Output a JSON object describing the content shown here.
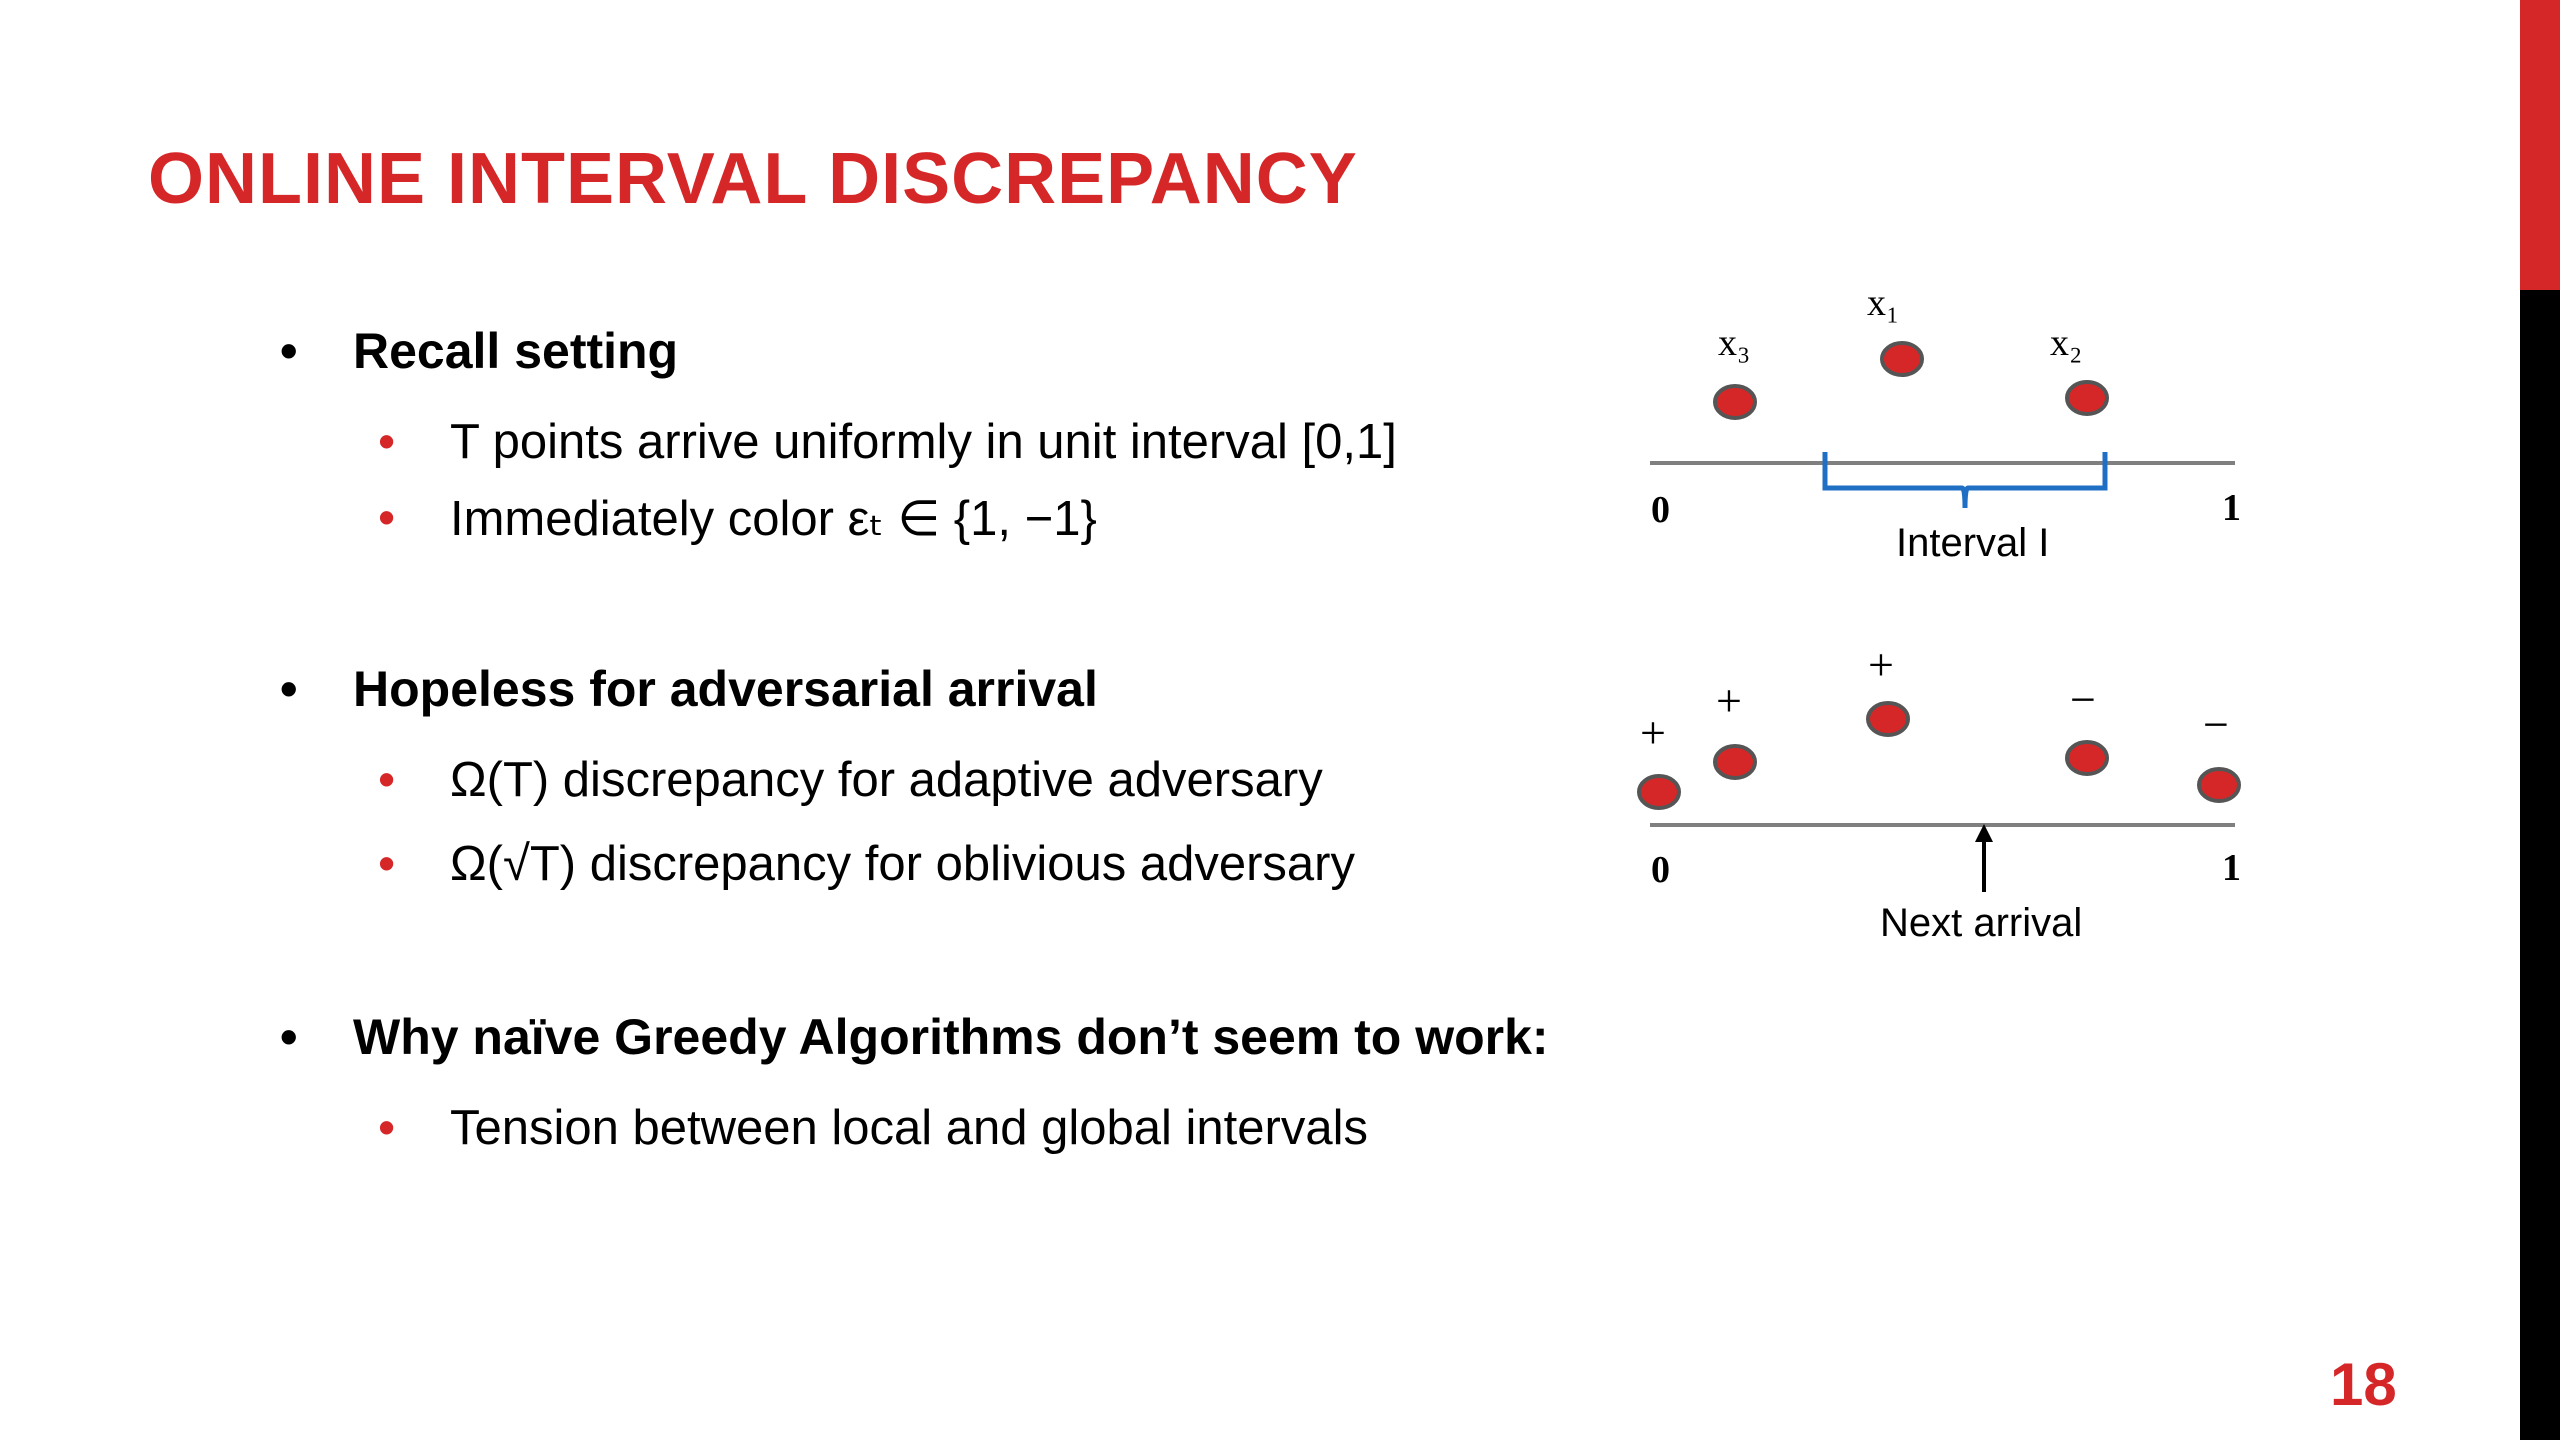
{
  "slide": {
    "title": "ONLINE INTERVAL DISCREPANCY",
    "page_number": "18"
  },
  "bullets": {
    "b1": "Recall setting",
    "b1_s1": "T points arrive uniformly in unit interval [0,1]",
    "b1_s2": "Immediately color εₜ ∈ {1, −1}",
    "b2": "Hopeless for adversarial arrival",
    "b2_s1": "Ω(T) discrepancy for adaptive adversary",
    "b2_s2": "Ω(√T) discrepancy for oblivious adversary",
    "b3": "Why naïve Greedy Algorithms don’t seem to work:",
    "b3_s1": "Tension between local and global intervals"
  },
  "diagram_top": {
    "label_x3": "x₃",
    "label_x1": "x₁",
    "label_x2": "x₂",
    "axis_start": "0",
    "axis_end": "1",
    "interval_label": "Interval I"
  },
  "diagram_bottom": {
    "sign_1": "+",
    "sign_2": "+",
    "sign_3": "+",
    "sign_4": "−",
    "sign_5": "−",
    "axis_start": "0",
    "axis_end": "1",
    "arrow_label": "Next arrival"
  },
  "colors": {
    "accent": "#d62728",
    "point_fill": "#d62728",
    "bracket": "#1f6fc5",
    "axis": "#7f7f7f"
  }
}
